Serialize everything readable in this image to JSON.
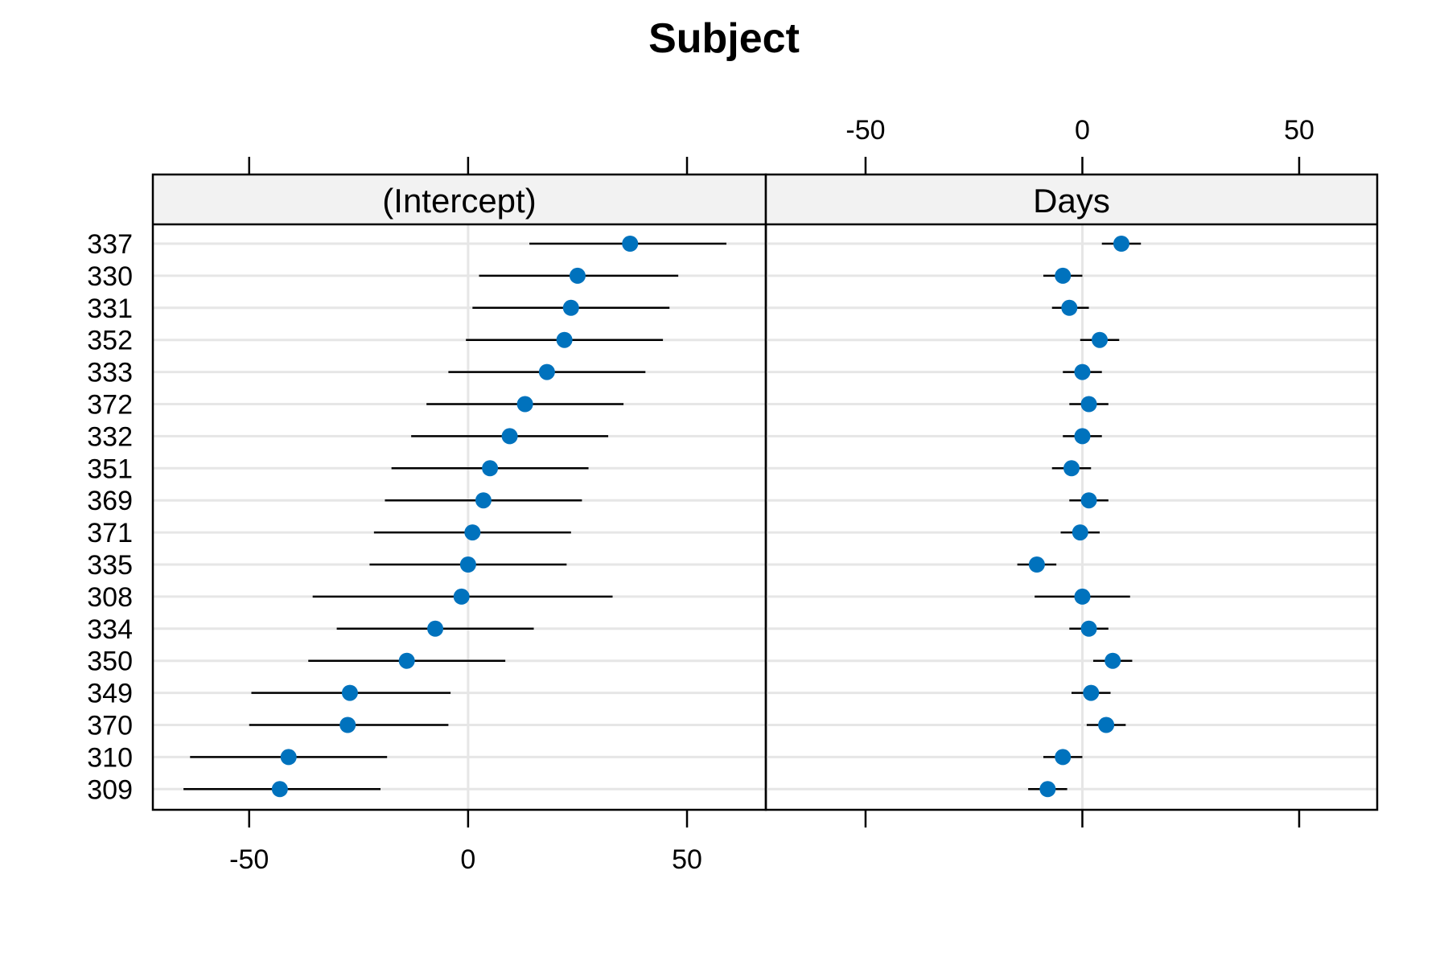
{
  "chart_data": {
    "type": "scatter",
    "title": "Subject",
    "subjects": [
      "337",
      "330",
      "331",
      "352",
      "333",
      "372",
      "332",
      "351",
      "369",
      "371",
      "335",
      "308",
      "334",
      "350",
      "349",
      "370",
      "310",
      "309"
    ],
    "x_ticks": [
      -50,
      0,
      50
    ],
    "x_tick_labels": [
      "-50",
      "0",
      "50"
    ],
    "panels": [
      {
        "name": "(Intercept)",
        "xlim": [
          -72,
          68
        ],
        "points": [
          {
            "subject": "337",
            "estimate": 37,
            "lower": 14,
            "upper": 59
          },
          {
            "subject": "330",
            "estimate": 25,
            "lower": 2.5,
            "upper": 48
          },
          {
            "subject": "331",
            "estimate": 23.5,
            "lower": 1,
            "upper": 46
          },
          {
            "subject": "352",
            "estimate": 22,
            "lower": -0.5,
            "upper": 44.5
          },
          {
            "subject": "333",
            "estimate": 18,
            "lower": -4.5,
            "upper": 40.5
          },
          {
            "subject": "372",
            "estimate": 13,
            "lower": -9.5,
            "upper": 35.5
          },
          {
            "subject": "332",
            "estimate": 9.5,
            "lower": -13,
            "upper": 32
          },
          {
            "subject": "351",
            "estimate": 5,
            "lower": -17.5,
            "upper": 27.5
          },
          {
            "subject": "369",
            "estimate": 3.5,
            "lower": -19,
            "upper": 26
          },
          {
            "subject": "371",
            "estimate": 1,
            "lower": -21.5,
            "upper": 23.5
          },
          {
            "subject": "335",
            "estimate": 0,
            "lower": -22.5,
            "upper": 22.5
          },
          {
            "subject": "308",
            "estimate": -1.5,
            "lower": -35.5,
            "upper": 33
          },
          {
            "subject": "334",
            "estimate": -7.5,
            "lower": -30,
            "upper": 15
          },
          {
            "subject": "350",
            "estimate": -14,
            "lower": -36.5,
            "upper": 8.5
          },
          {
            "subject": "349",
            "estimate": -27,
            "lower": -49.5,
            "upper": -4
          },
          {
            "subject": "370",
            "estimate": -27.5,
            "lower": -50,
            "upper": -4.5
          },
          {
            "subject": "310",
            "estimate": -41,
            "lower": -63.5,
            "upper": -18.5
          },
          {
            "subject": "309",
            "estimate": -43,
            "lower": -65,
            "upper": -20
          }
        ]
      },
      {
        "name": "Days",
        "xlim": [
          -73,
          68
        ],
        "points": [
          {
            "subject": "337",
            "estimate": 9,
            "lower": 4.5,
            "upper": 13.5
          },
          {
            "subject": "330",
            "estimate": -4.5,
            "lower": -9,
            "upper": 0
          },
          {
            "subject": "331",
            "estimate": -3,
            "lower": -7,
            "upper": 1.5
          },
          {
            "subject": "352",
            "estimate": 4,
            "lower": -0.5,
            "upper": 8.5
          },
          {
            "subject": "333",
            "estimate": 0,
            "lower": -4.5,
            "upper": 4.5
          },
          {
            "subject": "372",
            "estimate": 1.5,
            "lower": -3,
            "upper": 6
          },
          {
            "subject": "332",
            "estimate": 0,
            "lower": -4.5,
            "upper": 4.5
          },
          {
            "subject": "351",
            "estimate": -2.5,
            "lower": -7,
            "upper": 2
          },
          {
            "subject": "369",
            "estimate": 1.5,
            "lower": -3,
            "upper": 6
          },
          {
            "subject": "371",
            "estimate": -0.5,
            "lower": -5,
            "upper": 4
          },
          {
            "subject": "335",
            "estimate": -10.5,
            "lower": -15,
            "upper": -6
          },
          {
            "subject": "308",
            "estimate": 0,
            "lower": -11,
            "upper": 11
          },
          {
            "subject": "334",
            "estimate": 1.5,
            "lower": -3,
            "upper": 6
          },
          {
            "subject": "350",
            "estimate": 7,
            "lower": 2.5,
            "upper": 11.5
          },
          {
            "subject": "349",
            "estimate": 2,
            "lower": -2.5,
            "upper": 6.5
          },
          {
            "subject": "370",
            "estimate": 5.5,
            "lower": 1,
            "upper": 10
          },
          {
            "subject": "310",
            "estimate": -4.5,
            "lower": -9,
            "upper": 0
          },
          {
            "subject": "309",
            "estimate": -8,
            "lower": -12.5,
            "upper": -3.5
          }
        ]
      }
    ],
    "colors": {
      "point": "#0072bd",
      "interval": "#000000",
      "gridline": "#e6e6e6",
      "strip_fill": "#f2f2f2"
    },
    "grid": true,
    "legend": "none"
  }
}
